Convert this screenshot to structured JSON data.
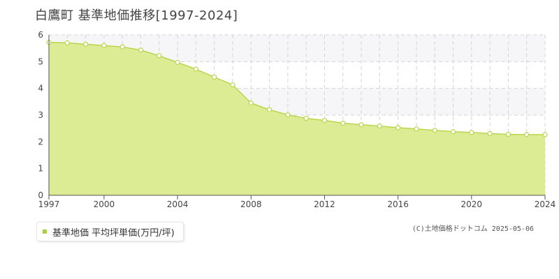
{
  "title": "白鷹町 基準地価推移[1997-2024]",
  "legend": {
    "label": "基準地価 平均坪単価(万円/坪)"
  },
  "source": "(C)土地価格ドットコム 2025-05-06",
  "colors": {
    "fill": "#dcec95",
    "line": "#b8d64a",
    "marker_fill": "#ffffff",
    "legend_swatch": "#a8d23a"
  },
  "chart_data": {
    "type": "area",
    "x": [
      1997,
      1998,
      1999,
      2000,
      2001,
      2002,
      2003,
      2004,
      2005,
      2006,
      2007,
      2008,
      2009,
      2010,
      2011,
      2012,
      2013,
      2014,
      2015,
      2016,
      2017,
      2018,
      2019,
      2020,
      2021,
      2022,
      2023,
      2024
    ],
    "series": [
      {
        "name": "基準地価 平均坪単価(万円/坪)",
        "values": [
          5.72,
          5.7,
          5.65,
          5.6,
          5.55,
          5.43,
          5.22,
          4.97,
          4.72,
          4.42,
          4.13,
          3.45,
          3.2,
          3.01,
          2.88,
          2.8,
          2.7,
          2.64,
          2.59,
          2.53,
          2.48,
          2.43,
          2.38,
          2.35,
          2.31,
          2.28,
          2.27,
          2.27
        ]
      }
    ],
    "x_ticks": [
      "1997",
      "2000",
      "2004",
      "2008",
      "2012",
      "2016",
      "2020",
      "2024"
    ],
    "y_ticks": [
      "0",
      "1",
      "2",
      "3",
      "4",
      "5",
      "6"
    ],
    "xlim": [
      1997,
      2024
    ],
    "ylim": [
      0,
      6
    ],
    "grid": true
  }
}
